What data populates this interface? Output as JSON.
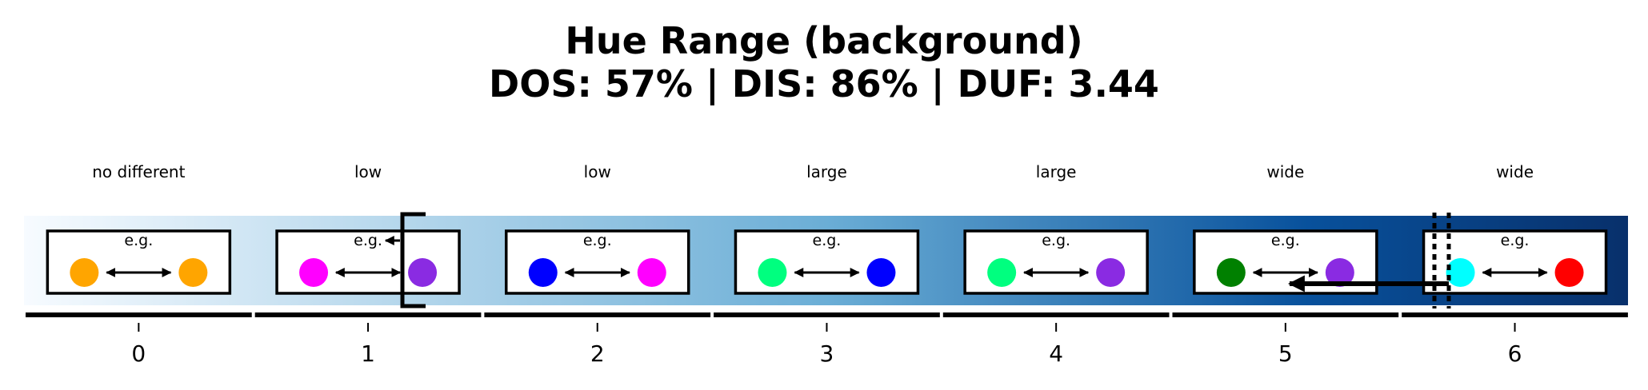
{
  "title": "Hue Range (background)",
  "subtitle": "DOS: 57% | DIS: 86% | DUF: 3.44",
  "example_label": "e.g.",
  "colors": {
    "gradient_start": "#f7fbff",
    "gradient_mid": "#6baed6",
    "gradient_dark": "#08519c",
    "gradient_end": "#08306b"
  },
  "levels": [
    {
      "tick": "0",
      "label": "no different",
      "left_color": "#ffa500",
      "right_color": "#ffa500"
    },
    {
      "tick": "1",
      "label": "low",
      "left_color": "#ff00ff",
      "right_color": "#8a2be2"
    },
    {
      "tick": "2",
      "label": "low",
      "left_color": "#0000ff",
      "right_color": "#ff00ff"
    },
    {
      "tick": "3",
      "label": "large",
      "left_color": "#00ff7f",
      "right_color": "#0000ff"
    },
    {
      "tick": "4",
      "label": "large",
      "left_color": "#00ff7f",
      "right_color": "#8a2be2"
    },
    {
      "tick": "5",
      "label": "wide",
      "left_color": "#008000",
      "right_color": "#8a2be2"
    },
    {
      "tick": "6",
      "label": "wide",
      "left_color": "#00ffff",
      "right_color": "#ff0000"
    }
  ]
}
